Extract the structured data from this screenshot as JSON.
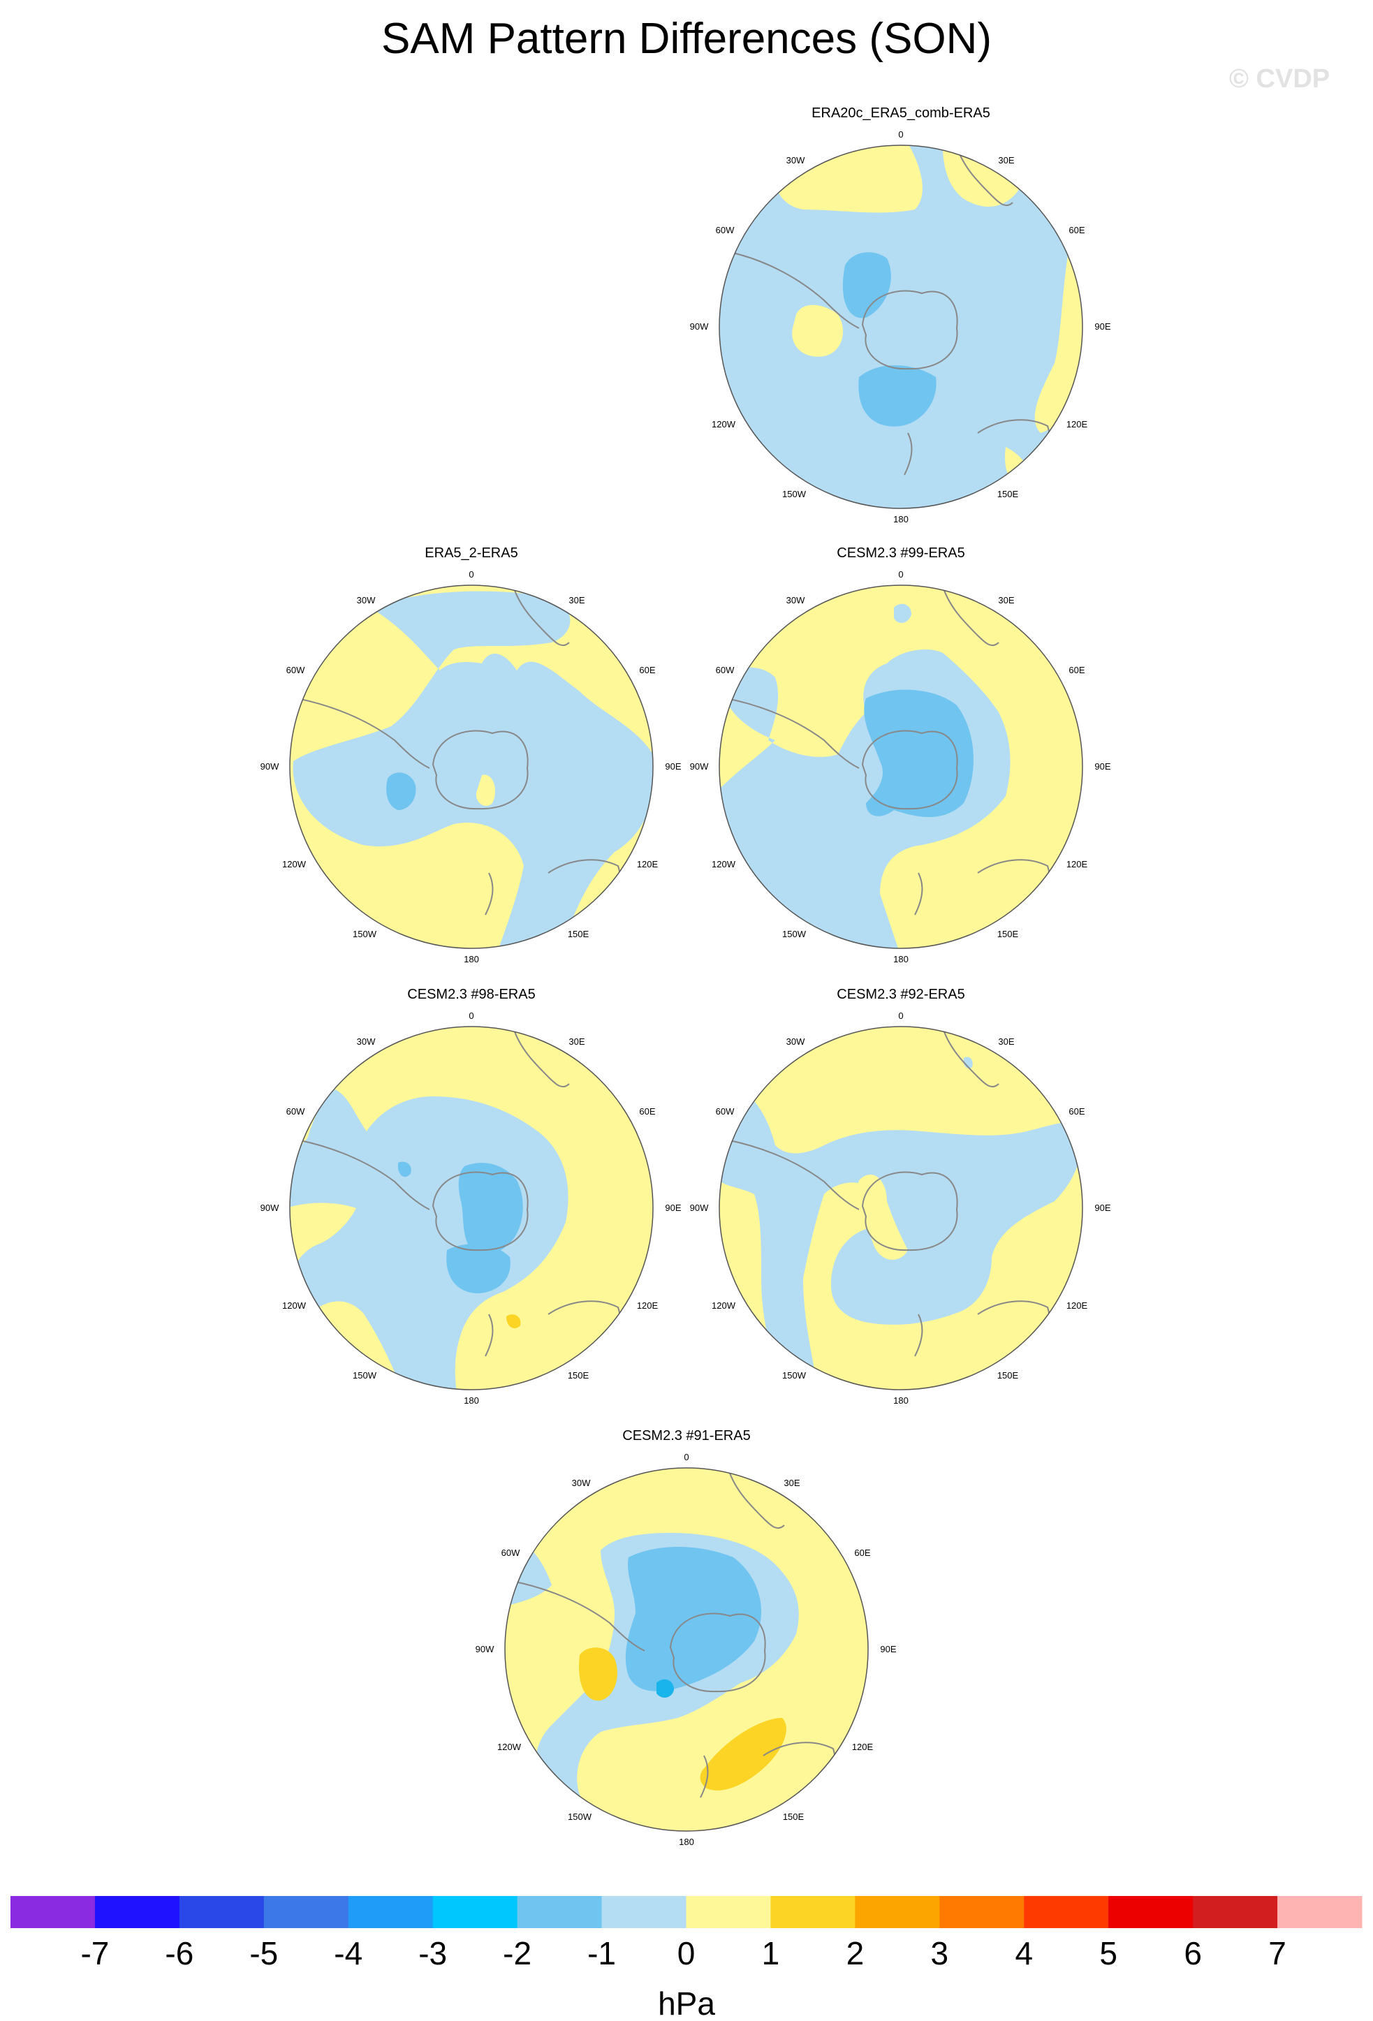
{
  "title": "SAM Pattern Differences (SON)",
  "watermark": "© CVDP",
  "colors": {
    "ocean_grey": "#888888",
    "neg1": "#b4dcf2",
    "neg2": "#70c4f0",
    "neg3": "#1ab4ec",
    "pos1": "#fff899",
    "pos2": "#fcd425"
  },
  "lon_labels": [
    "0",
    "30E",
    "60E",
    "90E",
    "120E",
    "150E",
    "180",
    "150W",
    "120W",
    "90W",
    "60W",
    "30W"
  ],
  "panels": [
    {
      "title": "ERA20c_ERA5_comb-ERA5",
      "base": "neg1"
    },
    {
      "title": "ERA5_2-ERA5",
      "base": "pos1"
    },
    {
      "title": "CESM2.3 #99-ERA5",
      "base": "pos1"
    },
    {
      "title": "CESM2.3 #98-ERA5",
      "base": "pos1"
    },
    {
      "title": "CESM2.3 #92-ERA5",
      "base": "pos1"
    },
    {
      "title": "CESM2.3 #91-ERA5",
      "base": "pos1"
    }
  ],
  "colorbar": {
    "unit": "hPa",
    "colors": [
      "#8a2be2",
      "#1e12ff",
      "#2a48e8",
      "#3c78e8",
      "#1e9cf8",
      "#00c8ff",
      "#70c4f0",
      "#b4dcf2",
      "#fff899",
      "#fcd425",
      "#fca500",
      "#ff7a00",
      "#ff3a00",
      "#ec0000",
      "#d21e1e",
      "#ffb4b4"
    ],
    "ticks": [
      "-7",
      "-6",
      "-5",
      "-4",
      "-3",
      "-2",
      "-1",
      "0",
      "1",
      "2",
      "3",
      "4",
      "5",
      "6",
      "7"
    ]
  }
}
